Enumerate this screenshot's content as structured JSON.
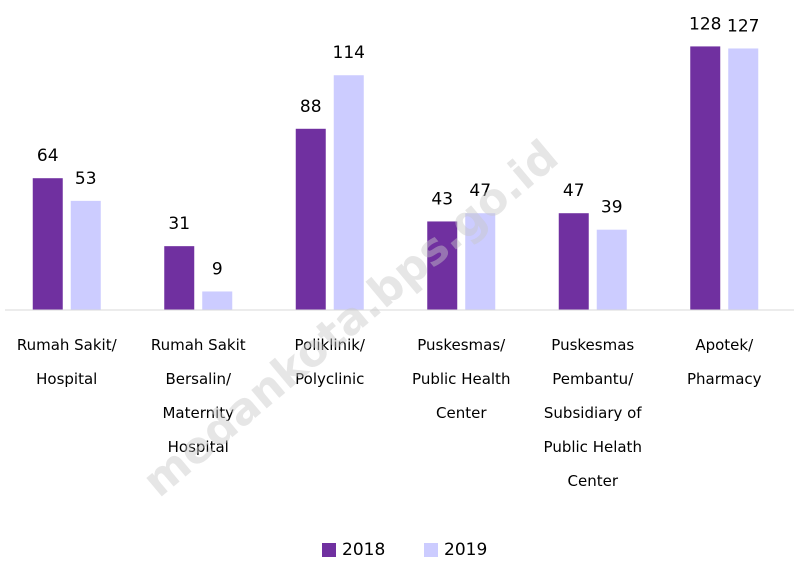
{
  "chart_data": {
    "type": "bar",
    "categories": [
      "Rumah Sakit/\nHospital",
      "Rumah Sakit\nBersalin/\nMaternity\nHospital",
      "Poliklinik/\nPolyclinic",
      "Puskesmas/\nPublic Health\nCenter",
      "Puskesmas\nPembantu/\nSubsidiary of\nPublic Helath\nCenter",
      "Apotek/\nPharmacy"
    ],
    "series": [
      {
        "name": "2018",
        "color": "#7030a0",
        "values": [
          64,
          31,
          88,
          43,
          47,
          128
        ]
      },
      {
        "name": "2019",
        "color": "#ccccff",
        "values": [
          53,
          9,
          114,
          47,
          39,
          127
        ]
      }
    ],
    "ylim": [
      0,
      135
    ],
    "legend": "bottom",
    "watermark": "medankota.bps.go.id"
  }
}
